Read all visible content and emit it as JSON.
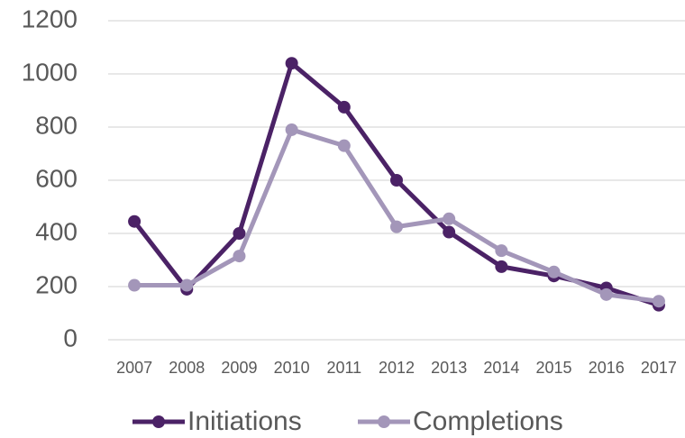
{
  "chart_data": {
    "type": "line",
    "categories": [
      "2007",
      "2008",
      "2009",
      "2010",
      "2011",
      "2012",
      "2013",
      "2014",
      "2015",
      "2016",
      "2017"
    ],
    "series": [
      {
        "name": "Initiations",
        "color": "#4b2266",
        "values": [
          445,
          190,
          400,
          1040,
          875,
          600,
          405,
          275,
          240,
          195,
          130
        ]
      },
      {
        "name": "Completions",
        "color": "#a396b9",
        "values": [
          205,
          205,
          315,
          790,
          730,
          425,
          455,
          335,
          255,
          170,
          145
        ]
      }
    ],
    "ylim": [
      0,
      1200
    ],
    "yticks": [
      0,
      200,
      400,
      600,
      800,
      1000,
      1200
    ],
    "grid": true,
    "legend": "bottom"
  }
}
